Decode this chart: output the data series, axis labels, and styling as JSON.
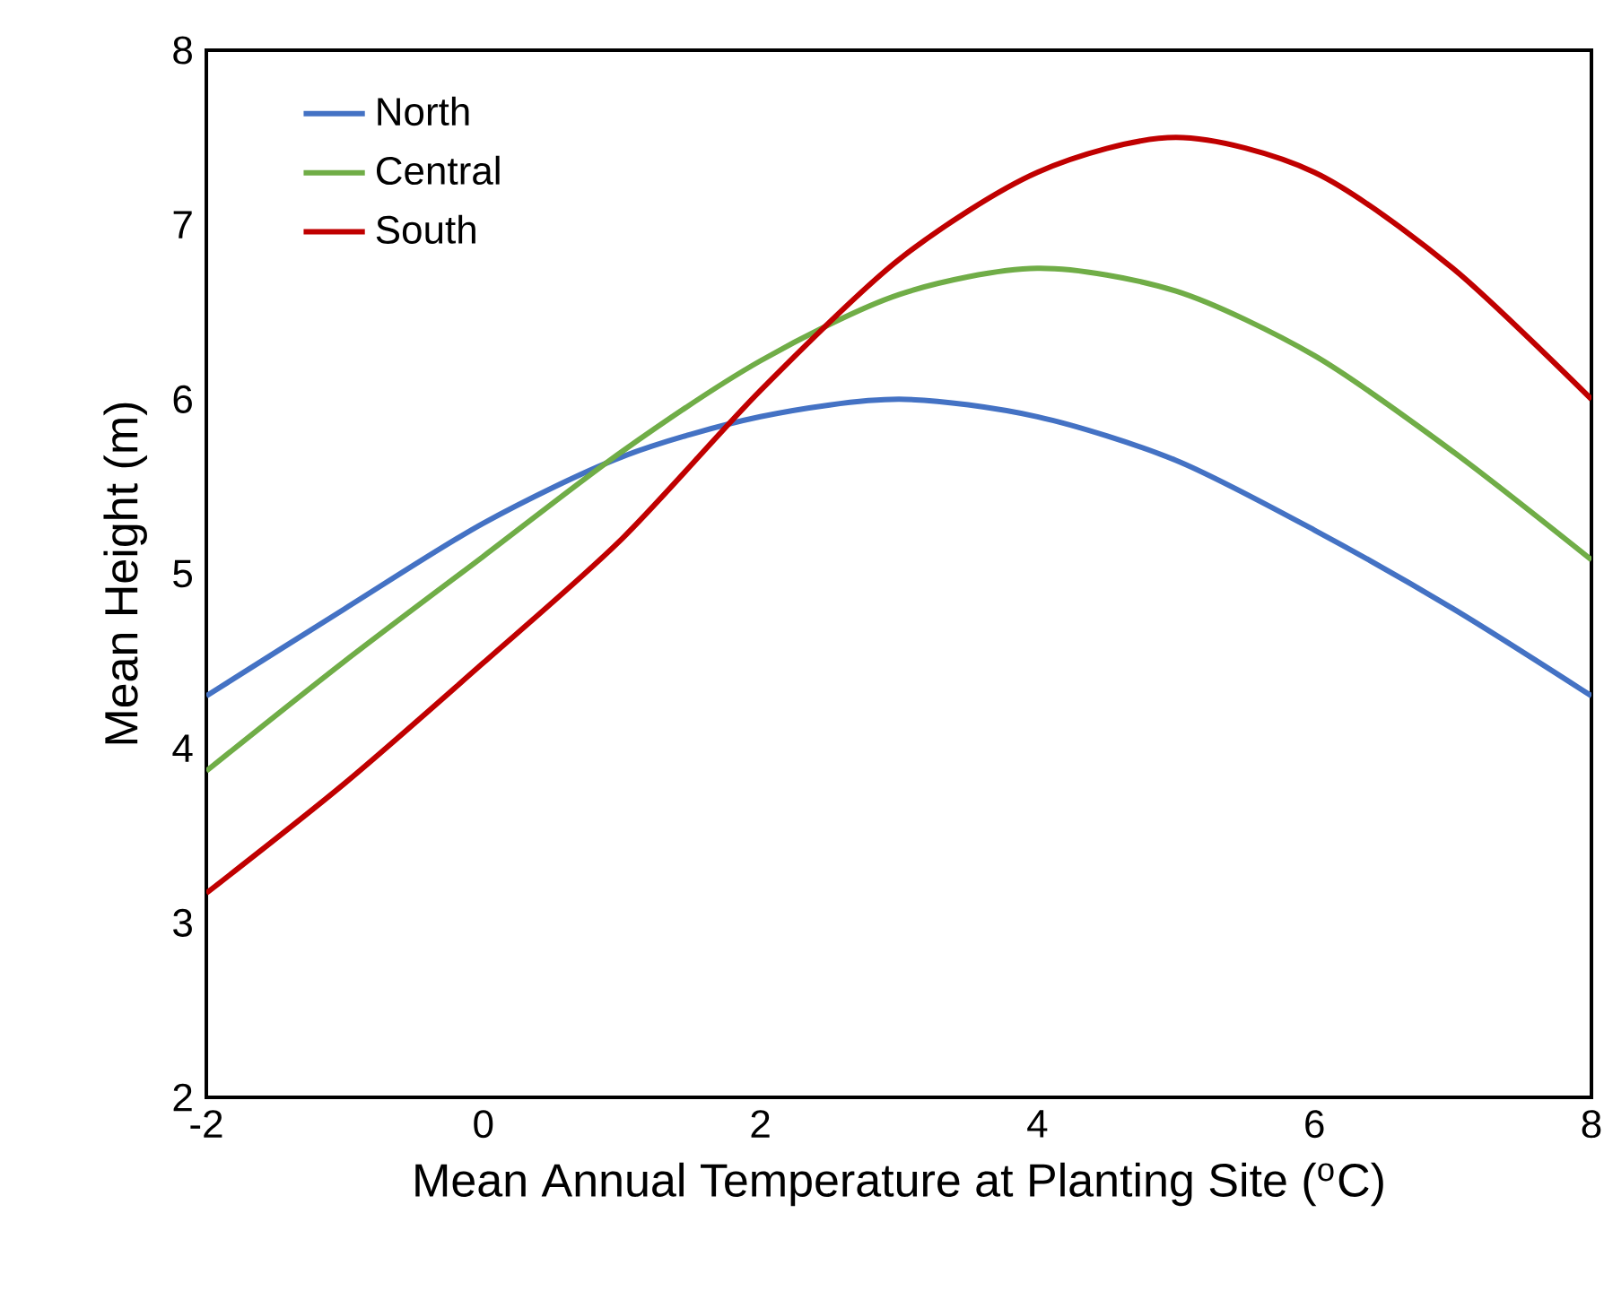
{
  "chart_data": {
    "type": "line",
    "xlabel": "Mean Annual Temperature at Planting Site ($^{o}$C)",
    "ylabel": "Mean Height (m)",
    "x": [
      -2,
      -1,
      0,
      1,
      2,
      3,
      4,
      5,
      6,
      7,
      8
    ],
    "series": [
      {
        "name": "North",
        "color": "#4472c4",
        "values": [
          4.3,
          4.8,
          5.29,
          5.67,
          5.9,
          6.0,
          5.9,
          5.65,
          5.25,
          4.8,
          4.3
        ]
      },
      {
        "name": "Central",
        "color": "#70ad47",
        "values": [
          3.87,
          4.5,
          5.1,
          5.7,
          6.22,
          6.6,
          6.75,
          6.62,
          6.25,
          5.7,
          5.08
        ]
      },
      {
        "name": "South",
        "color": "#c00000",
        "values": [
          3.17,
          3.8,
          4.49,
          5.2,
          6.05,
          6.8,
          7.3,
          7.5,
          7.3,
          6.75,
          6.0
        ]
      }
    ],
    "xlim": [
      -2,
      8
    ],
    "ylim": [
      2,
      8
    ],
    "xticks": [
      -2,
      0,
      2,
      4,
      6,
      8
    ],
    "yticks": [
      2,
      3,
      4,
      5,
      6,
      7,
      8
    ],
    "grid": false,
    "legend": "top left",
    "marker": "none",
    "line_style": "solid"
  }
}
